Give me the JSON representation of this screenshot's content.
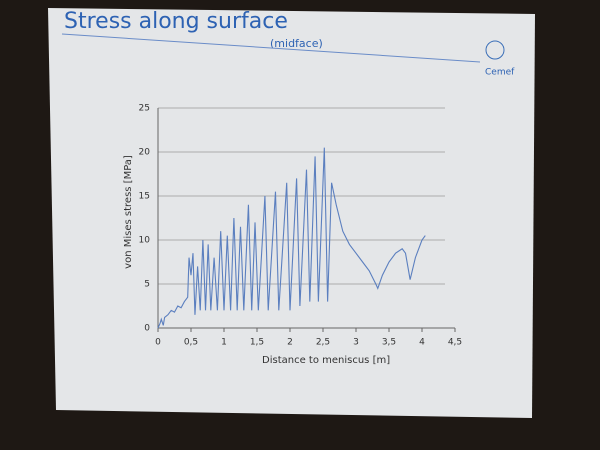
{
  "slide": {
    "title": "Stress along surface",
    "subtitle": "(midface)",
    "logo": "Cemef"
  },
  "chart_data": {
    "type": "line",
    "xlabel": "Distance to meniscus [m]",
    "ylabel": "von Mises stress [MPa]",
    "x": [
      0,
      0.03,
      0.05,
      0.08,
      0.1,
      0.15,
      0.2,
      0.25,
      0.3,
      0.35,
      0.4,
      0.45,
      0.47,
      0.5,
      0.53,
      0.56,
      0.6,
      0.64,
      0.68,
      0.72,
      0.76,
      0.8,
      0.85,
      0.9,
      0.95,
      1.0,
      1.05,
      1.1,
      1.15,
      1.2,
      1.25,
      1.3,
      1.37,
      1.42,
      1.47,
      1.52,
      1.62,
      1.67,
      1.78,
      1.83,
      1.95,
      2.0,
      2.1,
      2.15,
      2.25,
      2.3,
      2.38,
      2.43,
      2.52,
      2.57,
      2.63,
      2.7,
      2.8,
      2.9,
      3.0,
      3.1,
      3.2,
      3.3,
      3.33,
      3.4,
      3.5,
      3.6,
      3.7,
      3.75,
      3.82,
      3.9,
      4.0,
      4.05
    ],
    "series": [
      {
        "name": "von Mises stress",
        "color": "#5b7fbf",
        "values": [
          0,
          0.5,
          1,
          0.3,
          1.2,
          1.5,
          2,
          1.8,
          2.5,
          2.3,
          3,
          3.5,
          8,
          6,
          8.5,
          1.5,
          7,
          2,
          10,
          2,
          9.5,
          2,
          8,
          2,
          11,
          2,
          10.5,
          2,
          12.5,
          2,
          11.5,
          2,
          14,
          2,
          12,
          2,
          15,
          2,
          15.5,
          2,
          16.5,
          2,
          17,
          2.5,
          18,
          3,
          19.5,
          3,
          20.5,
          3,
          16.5,
          14,
          11,
          9.5,
          8.5,
          7.5,
          6.5,
          5,
          4.5,
          6,
          7.5,
          8.5,
          9,
          8.5,
          5.5,
          8,
          10,
          10.5
        ]
      }
    ],
    "xlim": [
      0,
      4.5
    ],
    "xticks": [
      0,
      {
        "value": 0.5,
        "label": "0,5"
      },
      1,
      {
        "value": 1.5,
        "label": "1,5"
      },
      2,
      {
        "value": 2.5,
        "label": "2,5"
      },
      3,
      {
        "value": 3.5,
        "label": "3,5"
      },
      4,
      {
        "value": 4.5,
        "label": "4,5"
      }
    ],
    "ylim": [
      0,
      25
    ],
    "yticks": [
      0,
      5,
      10,
      15,
      20,
      25
    ],
    "grid": true
  }
}
